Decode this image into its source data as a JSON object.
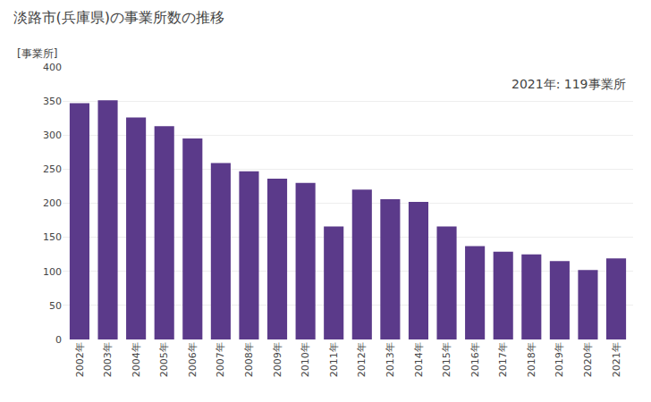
{
  "chart_data": {
    "type": "bar",
    "title": "淡路市(兵庫県)の事業所数の推移",
    "ylabel": "[事業所]",
    "annotation": "2021年: 119事業所",
    "categories": [
      "2002年",
      "2003年",
      "2004年",
      "2005年",
      "2006年",
      "2007年",
      "2008年",
      "2009年",
      "2010年",
      "2011年",
      "2012年",
      "2013年",
      "2014年",
      "2015年",
      "2016年",
      "2017年",
      "2018年",
      "2019年",
      "2020年",
      "2021年"
    ],
    "values": [
      347,
      351,
      326,
      313,
      295,
      259,
      247,
      236,
      230,
      166,
      220,
      206,
      202,
      166,
      137,
      129,
      125,
      115,
      102,
      119
    ],
    "color": "#5b3a8a",
    "ylim": [
      0,
      400
    ],
    "yticks": [
      0,
      50,
      100,
      150,
      200,
      250,
      300,
      350,
      400
    ],
    "grid": true
  }
}
